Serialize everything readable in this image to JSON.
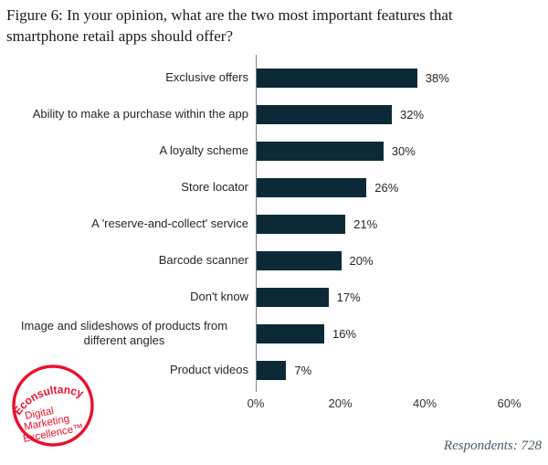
{
  "figure": {
    "title_line1": "Figure 6: In your opinion, what are the two most important features that",
    "title_line2": "smartphone retail apps should offer?",
    "respondents_note": "Respondents: 728"
  },
  "logo": {
    "brand": "Econsultancy",
    "tagline_lines": [
      "Digital",
      "Marketing",
      "Excellence™"
    ],
    "color": "#e8112d"
  },
  "chart_data": {
    "type": "bar",
    "orientation": "horizontal",
    "title": "Figure 6: In your opinion, what are the two most important features that smartphone retail apps should offer?",
    "categories": [
      "Exclusive offers",
      "Ability to make a purchase within the app",
      "A loyalty scheme",
      "Store locator",
      "A 'reserve-and-collect' service",
      "Barcode scanner",
      "Don't know",
      "Image and slideshows of products from different angles",
      "Product videos"
    ],
    "values": [
      38,
      32,
      30,
      26,
      21,
      20,
      17,
      16,
      7
    ],
    "value_labels": [
      "38%",
      "32%",
      "30%",
      "26%",
      "21%",
      "20%",
      "17%",
      "16%",
      "7%"
    ],
    "x_ticks": [
      0,
      20,
      40,
      60
    ],
    "x_tick_labels": [
      "0%",
      "20%",
      "40%",
      "60%"
    ],
    "xlim": [
      0,
      60
    ],
    "grid": false,
    "legend": false,
    "bar_color": "#0c2938",
    "axis_color": "#7f7f7f",
    "source_note": "Respondents: 728"
  }
}
